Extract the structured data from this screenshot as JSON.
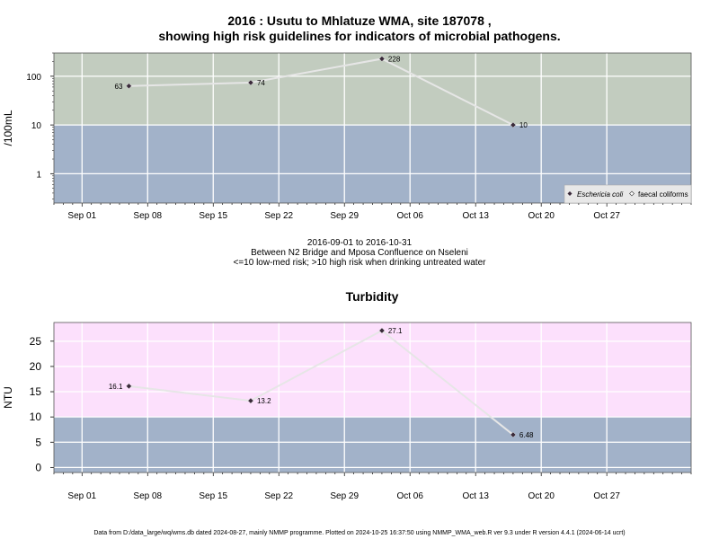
{
  "title": {
    "line1": "2016 : Usutu to Mhlatuze WMA, site 187078 ,",
    "line2": "showing high risk guidelines for indicators of microbial pathogens."
  },
  "subtitle": {
    "line1": "2016-09-01 to 2016-10-31",
    "line2": "Between N2 Bridge and Mposa Confluence on Nseleni",
    "line3": "<=10 low-med risk; >10 high risk when drinking untreated water"
  },
  "footer": "Data from D:/data_large/wq/wms.db dated 2024-08-27, mainly NMMP programme. Plotted on 2024-10-25 16:37:50 using NMMP_WMA_web.R ver 9.3 under R version 4.4.1 (2024-06-14 ucrt)",
  "colors": {
    "high_risk_microbial": "#c2ccbf",
    "low_risk": "#a2b2c9",
    "high_risk_turbidity": "#fce0fc",
    "grid": "#ffffff",
    "line": "#e6e6e6",
    "marker": "#3a2a3a"
  },
  "chart_data": [
    {
      "type": "line",
      "title": "",
      "xlabel": "",
      "ylabel": "/100mL",
      "yscale": "log",
      "ylim": [
        0.25,
        300
      ],
      "yticks": [
        1,
        10,
        100
      ],
      "ytick_labels": [
        "1",
        "10",
        "100"
      ],
      "threshold": 10,
      "xlim": [
        "2016-08-29",
        "2016-11-05"
      ],
      "xticks": [
        "2016-09-01",
        "2016-09-08",
        "2016-09-15",
        "2016-09-22",
        "2016-09-29",
        "2016-10-06",
        "2016-10-13",
        "2016-10-20",
        "2016-10-27"
      ],
      "xtick_labels": [
        "Sep 01",
        "Sep 08",
        "Sep 15",
        "Sep 22",
        "Sep 29",
        "Oct 06",
        "Oct 13",
        "Oct 20",
        "Oct 27"
      ],
      "grid": true,
      "legend_position": "bottom-right",
      "legend": [
        "Eschericia coli",
        "faecal coliforms"
      ],
      "series": [
        {
          "name": "Eschericia coli",
          "x": [
            "2016-09-06",
            "2016-09-19",
            "2016-10-03",
            "2016-10-17"
          ],
          "values": [
            63,
            74,
            228,
            10
          ],
          "labels": [
            "63",
            "74",
            "228",
            "10"
          ],
          "label_side": [
            "left",
            "right",
            "right",
            "right"
          ]
        }
      ]
    },
    {
      "type": "line",
      "title": "Turbidity",
      "xlabel": "",
      "ylabel": "NTU",
      "yscale": "linear",
      "ylim": [
        -1,
        28.7
      ],
      "yticks": [
        0,
        5,
        10,
        15,
        20,
        25
      ],
      "ytick_labels": [
        "0",
        "5",
        "10",
        "15",
        "20",
        "25"
      ],
      "threshold": 10,
      "xlim": [
        "2016-08-29",
        "2016-11-05"
      ],
      "xticks": [
        "2016-09-01",
        "2016-09-08",
        "2016-09-15",
        "2016-09-22",
        "2016-09-29",
        "2016-10-06",
        "2016-10-13",
        "2016-10-20",
        "2016-10-27"
      ],
      "xtick_labels": [
        "Sep 01",
        "Sep 08",
        "Sep 15",
        "Sep 22",
        "Sep 29",
        "Oct 06",
        "Oct 13",
        "Oct 20",
        "Oct 27"
      ],
      "grid": true,
      "series": [
        {
          "name": "",
          "x": [
            "2016-09-06",
            "2016-09-19",
            "2016-10-03",
            "2016-10-17"
          ],
          "values": [
            16.1,
            13.2,
            27.1,
            6.48
          ],
          "labels": [
            "16.1",
            "13.2",
            "27.1",
            "6.48"
          ],
          "label_side": [
            "left",
            "right",
            "right",
            "right"
          ]
        }
      ]
    }
  ]
}
